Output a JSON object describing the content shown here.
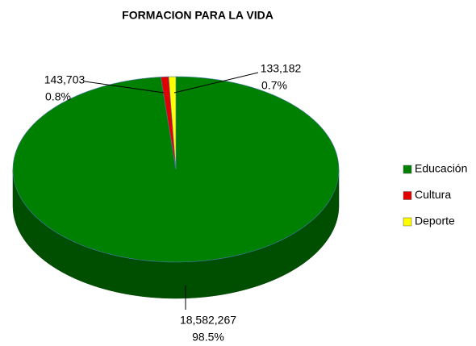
{
  "chart_data": {
    "type": "pie",
    "title": "FORMACION PARA LA VIDA",
    "categories": [
      "Educación",
      "Cultura",
      "Deporte"
    ],
    "values": [
      18582267,
      143703,
      133182
    ],
    "value_labels": [
      "18,582,267",
      "143,703",
      "133,182"
    ],
    "percent_labels": [
      "98.5%",
      "0.8%",
      "0.7%"
    ],
    "colors": [
      "#008000",
      "#e00000",
      "#ffff00"
    ],
    "legend": "right"
  }
}
